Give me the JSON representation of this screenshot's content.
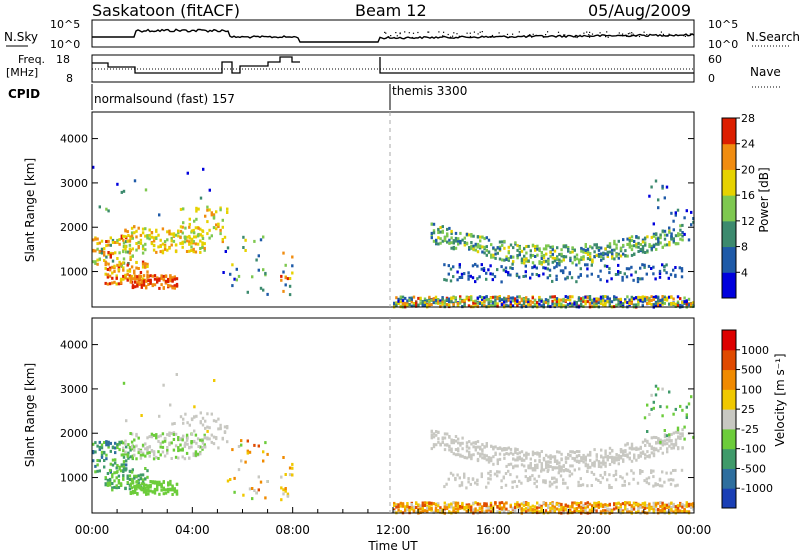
{
  "header": {
    "station": "Saskatoon (fitACF)",
    "beam": "Beam 12",
    "date": "05/Aug/2009"
  },
  "top_panels": {
    "nsky": {
      "label": "N.Sky",
      "ticks": [
        "10^5",
        "10^0"
      ]
    },
    "nsearch": {
      "label": "N.Search",
      "ticks": [
        "10^5",
        "10^0"
      ]
    },
    "freq": {
      "label_line1": "Freq.",
      "label_line2": "[MHz]",
      "ticks": [
        "18",
        "8"
      ]
    },
    "nave": {
      "label": "Nave",
      "ticks": [
        "60",
        "0"
      ]
    },
    "cpid": {
      "label": "CPID",
      "modes": [
        {
          "name": "normalsound (fast) 157",
          "start_hour": 0
        },
        {
          "name": "themis 3300",
          "start_hour": 12
        }
      ]
    }
  },
  "chart_data": [
    {
      "type": "heatmap",
      "panel": "power",
      "ylabel": "Slant Range [km]",
      "xlabel": "",
      "ylim": [
        200,
        4600
      ],
      "y_ticks": [
        "1000",
        "2000",
        "3000",
        "4000"
      ],
      "colorbar": {
        "label": "Power [dB]",
        "ticks": [
          "4",
          "8",
          "12",
          "16",
          "20",
          "24",
          "28"
        ],
        "colors": [
          "#0000dd",
          "#1e5aa8",
          "#3c8a6e",
          "#7ec850",
          "#e6d200",
          "#f08c10",
          "#dc1e00"
        ]
      }
    },
    {
      "type": "heatmap",
      "panel": "velocity",
      "ylabel": "Slant Range [km]",
      "xlabel": "Time UT",
      "ylim": [
        200,
        4600
      ],
      "y_ticks": [
        "1000",
        "2000",
        "3000",
        "4000"
      ],
      "x_ticks": [
        "00:00",
        "04:00",
        "08:00",
        "12:00",
        "16:00",
        "20:00",
        "00:00"
      ],
      "colorbar": {
        "label": "Velocity [m s⁻¹]",
        "ticks": [
          "1000",
          "500",
          "100",
          "25",
          "-25",
          "-100",
          "-500",
          "-1000"
        ],
        "colors": [
          "#1a3fb5",
          "#2e6e9e",
          "#3f9a6a",
          "#6ccc3a",
          "#c8c8c2",
          "#f0c800",
          "#f08a00",
          "#e04a00",
          "#dd0000"
        ]
      }
    }
  ]
}
